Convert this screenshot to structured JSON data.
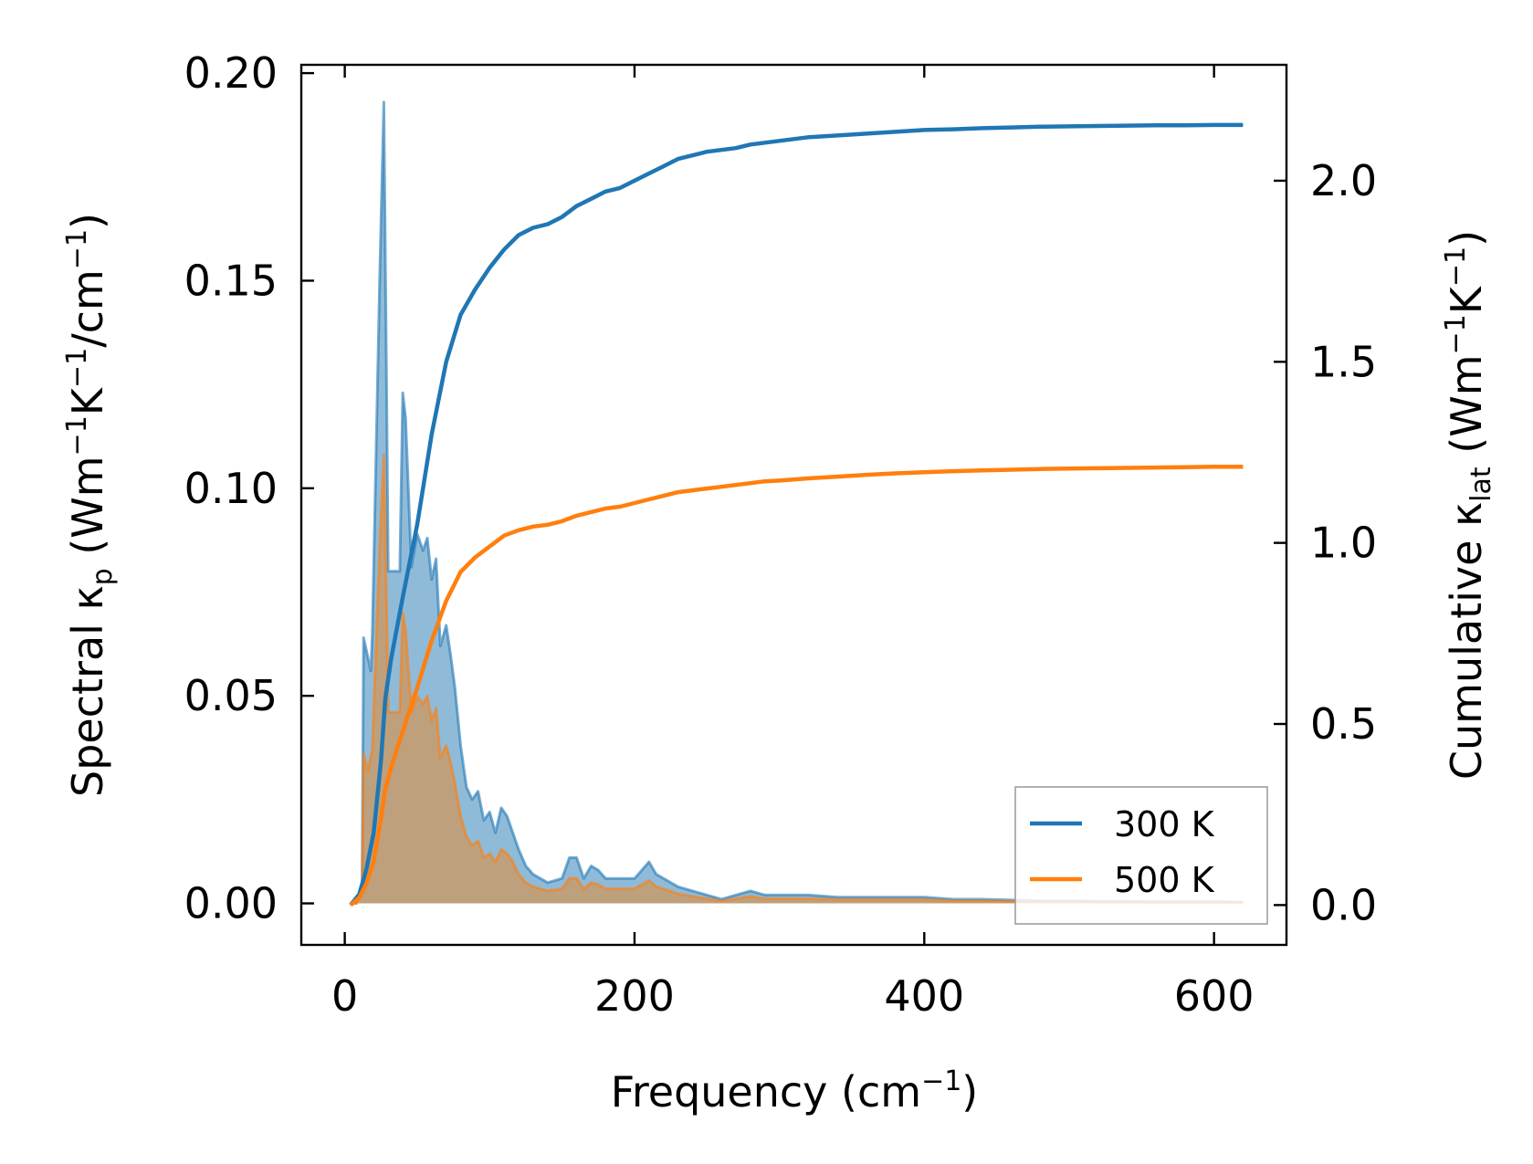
{
  "chart_data": {
    "type": "line",
    "xlabel": "Frequency (cm",
    "xlabel_sup": "−1",
    "xlabel_tail": ")",
    "ylabel_left": {
      "prefix": "Spectral κ",
      "sub": "p",
      "units_open": " (Wm",
      "sup1": "−1",
      "mid": "K",
      "sup2": "−1",
      "tail1": "/cm",
      "sup3": "−1",
      "tail2": ")"
    },
    "ylabel_right": {
      "prefix": "Cumulative κ",
      "sub": "lat",
      "units_open": " (Wm",
      "sup1": "−1",
      "mid": "K",
      "sup2": "−1",
      "tail": ")"
    },
    "xlim": [
      -30,
      650
    ],
    "ylim_left": [
      -0.01,
      0.202
    ],
    "ylim_right": [
      -0.11,
      2.32
    ],
    "x_ticks": [
      0,
      200,
      400,
      600
    ],
    "x_tick_labels": [
      "0",
      "200",
      "400",
      "600"
    ],
    "y_left_ticks": [
      0.0,
      0.05,
      0.1,
      0.15,
      0.2
    ],
    "y_left_tick_labels": [
      "0.00",
      "0.05",
      "0.10",
      "0.15",
      "0.20"
    ],
    "y_right_ticks": [
      0.0,
      0.5,
      1.0,
      1.5,
      2.0
    ],
    "y_right_tick_labels": [
      "0.0",
      "0.5",
      "1.0",
      "1.5",
      "2.0"
    ],
    "legend_position": "bottom-right",
    "series": [
      {
        "name": "300 K",
        "color": "#1f77b4",
        "fill_color": "#1f77b4",
        "spectral": {
          "x": [
            4,
            8,
            12,
            13,
            18,
            19,
            24,
            27,
            29,
            30,
            33,
            38,
            40,
            42,
            46,
            50,
            54,
            57,
            60,
            63,
            66,
            70,
            73,
            76,
            80,
            84,
            88,
            92,
            96,
            100,
            104,
            108,
            112,
            116,
            120,
            125,
            130,
            140,
            150,
            155,
            160,
            165,
            170,
            175,
            180,
            190,
            200,
            205,
            210,
            215,
            220,
            230,
            240,
            250,
            260,
            270,
            280,
            290,
            300,
            320,
            340,
            360,
            380,
            400,
            420,
            440,
            460,
            480,
            500,
            520,
            540,
            560,
            580,
            600,
            620
          ],
          "y": [
            0.0,
            0.0,
            0.005,
            0.064,
            0.056,
            0.065,
            0.149,
            0.193,
            0.12,
            0.08,
            0.08,
            0.08,
            0.123,
            0.117,
            0.081,
            0.089,
            0.085,
            0.088,
            0.078,
            0.083,
            0.062,
            0.067,
            0.06,
            0.052,
            0.038,
            0.028,
            0.025,
            0.027,
            0.02,
            0.022,
            0.017,
            0.023,
            0.021,
            0.017,
            0.013,
            0.009,
            0.007,
            0.005,
            0.006,
            0.011,
            0.011,
            0.006,
            0.009,
            0.008,
            0.006,
            0.006,
            0.006,
            0.008,
            0.01,
            0.007,
            0.006,
            0.004,
            0.003,
            0.002,
            0.001,
            0.002,
            0.003,
            0.002,
            0.002,
            0.002,
            0.0015,
            0.0015,
            0.0015,
            0.0015,
            0.001,
            0.001,
            0.0008,
            0.0006,
            0.0006,
            0.0005,
            0.0005,
            0.0004,
            0.0004,
            0.0004,
            0.0003
          ]
        },
        "cumulative": {
          "x": [
            4,
            10,
            15,
            20,
            25,
            28,
            32,
            40,
            50,
            60,
            70,
            80,
            90,
            100,
            110,
            120,
            130,
            140,
            150,
            160,
            170,
            180,
            190,
            200,
            210,
            220,
            230,
            240,
            250,
            260,
            270,
            280,
            290,
            300,
            320,
            340,
            360,
            380,
            400,
            420,
            440,
            460,
            480,
            500,
            520,
            540,
            560,
            580,
            600,
            620
          ],
          "y": [
            0.0,
            0.03,
            0.1,
            0.2,
            0.4,
            0.57,
            0.68,
            0.85,
            1.05,
            1.3,
            1.5,
            1.63,
            1.7,
            1.76,
            1.81,
            1.85,
            1.87,
            1.88,
            1.9,
            1.93,
            1.95,
            1.97,
            1.98,
            2.0,
            2.02,
            2.04,
            2.06,
            2.07,
            2.08,
            2.085,
            2.09,
            2.1,
            2.105,
            2.11,
            2.12,
            2.125,
            2.13,
            2.135,
            2.14,
            2.142,
            2.145,
            2.147,
            2.149,
            2.15,
            2.151,
            2.152,
            2.153,
            2.153,
            2.154,
            2.154
          ]
        }
      },
      {
        "name": "500 K",
        "color": "#ff7f0e",
        "fill_color": "#e08e3d",
        "spectral": {
          "x": [
            4,
            8,
            12,
            13,
            16,
            19,
            24,
            27,
            29,
            30,
            33,
            38,
            40,
            42,
            46,
            50,
            54,
            57,
            60,
            63,
            66,
            70,
            73,
            76,
            80,
            84,
            88,
            92,
            96,
            100,
            104,
            108,
            112,
            116,
            120,
            125,
            130,
            140,
            150,
            155,
            160,
            165,
            170,
            175,
            180,
            190,
            200,
            205,
            210,
            215,
            220,
            230,
            240,
            250,
            260,
            270,
            280,
            290,
            300,
            320,
            340,
            360,
            380,
            400,
            420,
            440,
            460,
            480,
            500,
            520,
            540,
            560,
            580,
            600,
            620
          ],
          "y": [
            0.0,
            0.0,
            0.003,
            0.036,
            0.032,
            0.037,
            0.085,
            0.108,
            0.069,
            0.046,
            0.046,
            0.046,
            0.07,
            0.066,
            0.046,
            0.05,
            0.048,
            0.05,
            0.044,
            0.047,
            0.035,
            0.038,
            0.034,
            0.029,
            0.021,
            0.016,
            0.014,
            0.015,
            0.011,
            0.012,
            0.01,
            0.013,
            0.012,
            0.01,
            0.007,
            0.005,
            0.004,
            0.003,
            0.0035,
            0.006,
            0.006,
            0.0035,
            0.005,
            0.0045,
            0.0035,
            0.0035,
            0.0035,
            0.0045,
            0.0055,
            0.004,
            0.0035,
            0.0023,
            0.0017,
            0.0011,
            0.0006,
            0.0011,
            0.0017,
            0.0011,
            0.0011,
            0.0011,
            0.0009,
            0.0009,
            0.0009,
            0.0009,
            0.0006,
            0.0006,
            0.0005,
            0.0004,
            0.0004,
            0.0003,
            0.0003,
            0.0002,
            0.0002,
            0.0002,
            0.0002
          ]
        },
        "cumulative": {
          "x": [
            4,
            10,
            15,
            20,
            25,
            28,
            32,
            40,
            50,
            60,
            70,
            80,
            90,
            100,
            110,
            120,
            130,
            140,
            150,
            160,
            170,
            180,
            190,
            200,
            210,
            220,
            230,
            240,
            250,
            260,
            270,
            280,
            290,
            300,
            320,
            340,
            360,
            380,
            400,
            420,
            440,
            460,
            480,
            500,
            520,
            540,
            560,
            580,
            600,
            620
          ],
          "y": [
            0.0,
            0.02,
            0.06,
            0.12,
            0.24,
            0.32,
            0.38,
            0.48,
            0.6,
            0.73,
            0.84,
            0.92,
            0.96,
            0.99,
            1.02,
            1.035,
            1.045,
            1.05,
            1.06,
            1.075,
            1.085,
            1.095,
            1.1,
            1.11,
            1.12,
            1.13,
            1.14,
            1.145,
            1.15,
            1.155,
            1.16,
            1.165,
            1.17,
            1.172,
            1.178,
            1.183,
            1.188,
            1.192,
            1.195,
            1.198,
            1.2,
            1.202,
            1.204,
            1.205,
            1.206,
            1.207,
            1.208,
            1.209,
            1.21,
            1.21
          ]
        }
      }
    ]
  }
}
